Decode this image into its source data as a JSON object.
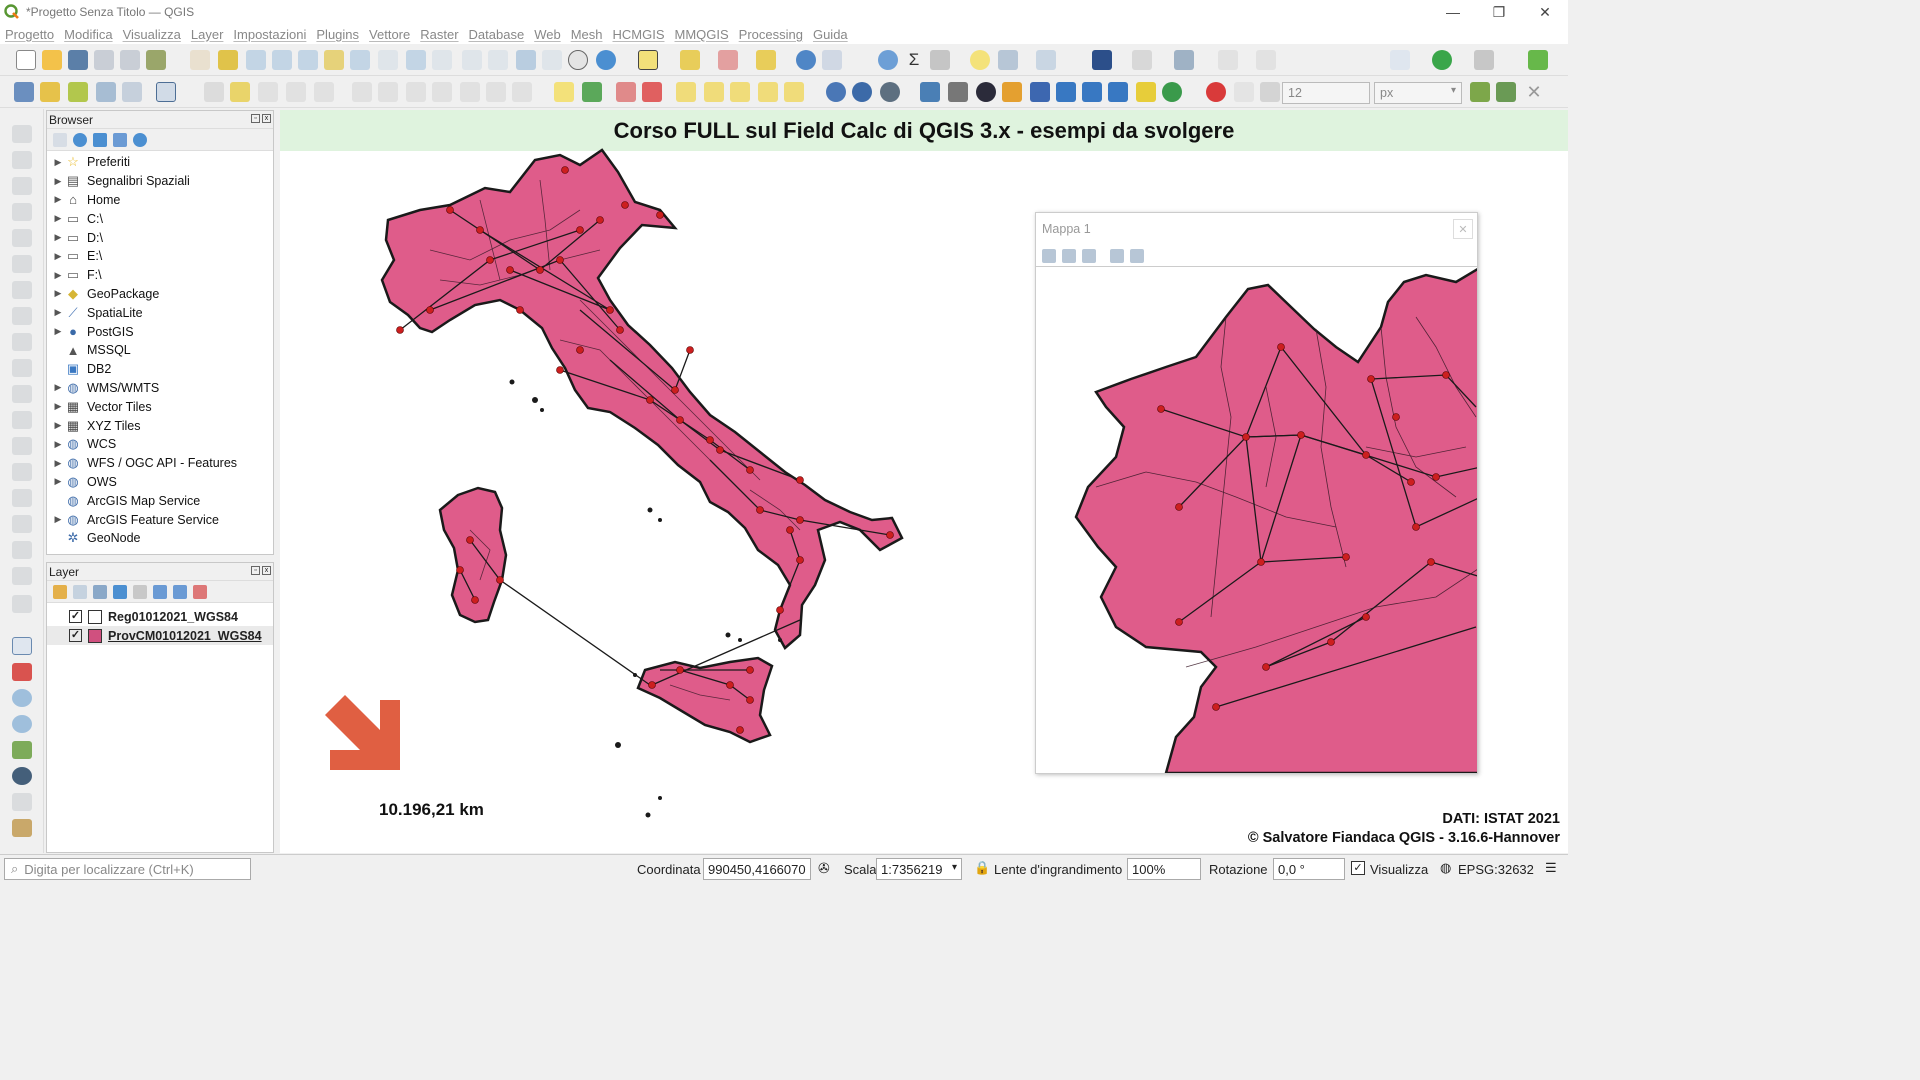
{
  "window": {
    "title": "*Progetto Senza Titolo — QGIS"
  },
  "menu": [
    "Progetto",
    "Modifica",
    "Visualizza",
    "Layer",
    "Impostazioni",
    "Plugins",
    "Vettore",
    "Raster",
    "Database",
    "Web",
    "Mesh",
    "HCMGIS",
    "MMQGIS",
    "Processing",
    "Guida"
  ],
  "toolbar2": {
    "font_size": "12",
    "unit": "px"
  },
  "browser": {
    "title": "Browser",
    "items": [
      {
        "label": "Preferiti",
        "icon": "star-icon",
        "expandable": true
      },
      {
        "label": "Segnalibri Spaziali",
        "icon": "bookmark-icon",
        "expandable": true
      },
      {
        "label": "Home",
        "icon": "home-folder-icon",
        "expandable": true
      },
      {
        "label": "C:\\",
        "icon": "folder-icon",
        "expandable": true
      },
      {
        "label": "D:\\",
        "icon": "folder-icon",
        "expandable": true
      },
      {
        "label": "E:\\",
        "icon": "folder-icon",
        "expandable": true
      },
      {
        "label": "F:\\",
        "icon": "folder-icon",
        "expandable": true
      },
      {
        "label": "GeoPackage",
        "icon": "geopackage-icon",
        "expandable": true
      },
      {
        "label": "SpatiaLite",
        "icon": "spatialite-icon",
        "expandable": true
      },
      {
        "label": "PostGIS",
        "icon": "postgis-icon",
        "expandable": true
      },
      {
        "label": "MSSQL",
        "icon": "mssql-icon",
        "expandable": false
      },
      {
        "label": "DB2",
        "icon": "db2-icon",
        "expandable": false
      },
      {
        "label": "WMS/WMTS",
        "icon": "globe-icon",
        "expandable": true
      },
      {
        "label": "Vector Tiles",
        "icon": "grid-icon",
        "expandable": true
      },
      {
        "label": "XYZ Tiles",
        "icon": "grid-icon",
        "expandable": true
      },
      {
        "label": "WCS",
        "icon": "globe-icon",
        "expandable": true
      },
      {
        "label": "WFS / OGC API - Features",
        "icon": "globe-icon",
        "expandable": true
      },
      {
        "label": "OWS",
        "icon": "globe-icon",
        "expandable": true
      },
      {
        "label": "ArcGIS Map Service",
        "icon": "globe-icon",
        "expandable": false
      },
      {
        "label": "ArcGIS Feature Service",
        "icon": "globe-icon",
        "expandable": true
      },
      {
        "label": "GeoNode",
        "icon": "geonode-icon",
        "expandable": false
      }
    ]
  },
  "layers": {
    "title": "Layer",
    "items": [
      {
        "name": "Reg01012021_WGS84",
        "checked": true,
        "symbol": "white"
      },
      {
        "name": "ProvCM01012021_WGS84",
        "checked": true,
        "symbol": "#d0507f"
      }
    ]
  },
  "map": {
    "title": "Corso FULL sul Field Calc di QGIS 3.x - esempi da svolgere",
    "scale_text": "10.196,21 km",
    "credits_line1": "DATI: ISTAT 2021",
    "credits_line2": "© Salvatore Fiandaca QGIS - 3.16.6-Hannover",
    "fill_color": "#df5c8a",
    "arrow_color": "#e05f42",
    "inset_title": "Mappa 1"
  },
  "status": {
    "locator_placeholder": "Digita per localizzare (Ctrl+K)",
    "coord_label": "Coordinata",
    "coord_value": "990450,4166070",
    "scale_label": "Scala",
    "scale_value": "1:7356219",
    "magnifier_label": "Lente d'ingrandimento",
    "magnifier_value": "100%",
    "rotation_label": "Rotazione",
    "rotation_value": "0,0 °",
    "render_label": "Visualizza",
    "crs": "EPSG:32632"
  }
}
